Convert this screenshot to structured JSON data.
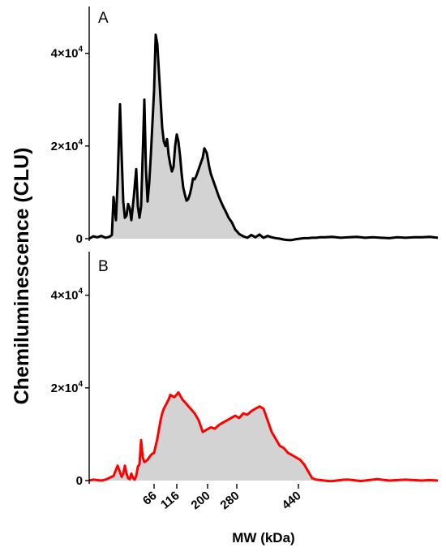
{
  "chart_data": [
    {
      "type": "area",
      "panel_label": "A",
      "ylabel": "Chemiluminescence (CLU)",
      "ylim": [
        0,
        48000
      ],
      "xlim": [
        0,
        430
      ],
      "yticks": [
        {
          "value": 0,
          "base": "0",
          "exp": ""
        },
        {
          "value": 20000,
          "base": "2×10",
          "exp": "4"
        },
        {
          "value": 40000,
          "base": "4×10",
          "exp": "4"
        }
      ],
      "line_color": "#000000",
      "fill_color": "#d3d3d3",
      "x": [
        0,
        5,
        10,
        15,
        20,
        25,
        28,
        30,
        33,
        35,
        38,
        40,
        42,
        44,
        46,
        48,
        50,
        52,
        55,
        58,
        60,
        62,
        64,
        66,
        68,
        70,
        72,
        74,
        76,
        78,
        80,
        82,
        84,
        86,
        88,
        90,
        92,
        94,
        96,
        98,
        100,
        102,
        104,
        106,
        108,
        110,
        112,
        114,
        116,
        118,
        120,
        122,
        124,
        126,
        128,
        130,
        132,
        134,
        136,
        138,
        140,
        142,
        145,
        148,
        150,
        153,
        156,
        160,
        165,
        168,
        172,
        176,
        180,
        185,
        190,
        195,
        200,
        205,
        210,
        215,
        220,
        225,
        230,
        235,
        240,
        245,
        250,
        255,
        260,
        265,
        270,
        275,
        280,
        285,
        290,
        300,
        310,
        320,
        330,
        340,
        350,
        360,
        370,
        380,
        390,
        400,
        410,
        420,
        430
      ],
      "y": [
        0,
        500,
        300,
        600,
        200,
        400,
        800,
        9000,
        4000,
        12000,
        29000,
        18000,
        8000,
        4500,
        5000,
        7500,
        6500,
        4000,
        9000,
        15000,
        7000,
        4500,
        7000,
        18000,
        30000,
        15000,
        8000,
        12000,
        18000,
        25000,
        32000,
        44000,
        42000,
        36000,
        30000,
        24000,
        21000,
        20000,
        21500,
        18000,
        16000,
        14500,
        15500,
        20000,
        22500,
        21000,
        18000,
        14000,
        11000,
        9500,
        8200,
        8500,
        9500,
        11000,
        13000,
        12800,
        13500,
        14500,
        15500,
        16500,
        17500,
        19500,
        18500,
        15500,
        14000,
        12500,
        11000,
        9000,
        7000,
        6000,
        4500,
        3500,
        2000,
        1000,
        500,
        200,
        800,
        300,
        900,
        200,
        600,
        300,
        100,
        0,
        -200,
        -300,
        -300,
        -100,
        0,
        100,
        100,
        200,
        200,
        300,
        300,
        400,
        200,
        300,
        400,
        200,
        300,
        200,
        100,
        300,
        200,
        300,
        300,
        400,
        200
      ],
      "x_pixels_hint": "none"
    },
    {
      "type": "area",
      "panel_label": "B",
      "ylim": [
        0,
        48000
      ],
      "xlim": [
        0,
        430
      ],
      "yticks": [
        {
          "value": 0,
          "base": "0",
          "exp": ""
        },
        {
          "value": 20000,
          "base": "2×10",
          "exp": "4"
        },
        {
          "value": 40000,
          "base": "4×10",
          "exp": "4"
        }
      ],
      "line_color": "#ff0000",
      "fill_color": "#d3d3d3",
      "x": [
        0,
        5,
        10,
        15,
        20,
        25,
        30,
        35,
        38,
        40,
        42,
        44,
        46,
        48,
        50,
        52,
        54,
        56,
        58,
        60,
        62,
        64,
        66,
        68,
        70,
        72,
        74,
        76,
        78,
        80,
        82,
        84,
        86,
        88,
        90,
        92,
        95,
        98,
        100,
        105,
        110,
        115,
        120,
        125,
        130,
        135,
        140,
        145,
        150,
        155,
        160,
        165,
        170,
        175,
        180,
        185,
        190,
        195,
        200,
        205,
        210,
        215,
        220,
        225,
        230,
        235,
        240,
        245,
        250,
        255,
        260,
        265,
        270,
        275,
        280,
        285,
        290,
        295,
        300,
        305,
        310,
        315,
        320,
        325,
        330,
        335,
        340,
        345,
        350,
        355,
        360,
        365,
        370,
        380,
        390,
        400,
        410,
        420,
        430
      ],
      "y": [
        0,
        200,
        100,
        0,
        200,
        600,
        1000,
        3200,
        1800,
        800,
        1500,
        3200,
        1500,
        500,
        300,
        1500,
        600,
        200,
        1000,
        3000,
        3500,
        8700,
        5000,
        4000,
        4200,
        4500,
        5000,
        5500,
        5800,
        6000,
        7500,
        9000,
        11000,
        13000,
        14500,
        15500,
        16500,
        17500,
        18500,
        18000,
        19000,
        17500,
        16500,
        15500,
        14500,
        13000,
        10500,
        11000,
        11500,
        11200,
        12000,
        12500,
        13000,
        13500,
        14000,
        13500,
        14500,
        14200,
        15000,
        15500,
        16000,
        15500,
        13000,
        10500,
        9000,
        7500,
        7000,
        6000,
        5500,
        5000,
        4500,
        3500,
        2000,
        500,
        200,
        100,
        0,
        -100,
        -100,
        0,
        100,
        200,
        200,
        100,
        0,
        -100,
        0,
        100,
        200,
        300,
        200,
        100,
        0,
        100,
        200,
        100,
        0,
        100,
        0
      ],
      "x_pixels_hint": "none"
    }
  ],
  "x_axis": {
    "label": "MW (kDa)",
    "ticks": [
      {
        "value": 66,
        "label": "66"
      },
      {
        "value": 116,
        "label": "116"
      },
      {
        "value": 200,
        "label": "200"
      },
      {
        "value": 280,
        "label": "280"
      },
      {
        "value": 440,
        "label": "440"
      }
    ]
  }
}
